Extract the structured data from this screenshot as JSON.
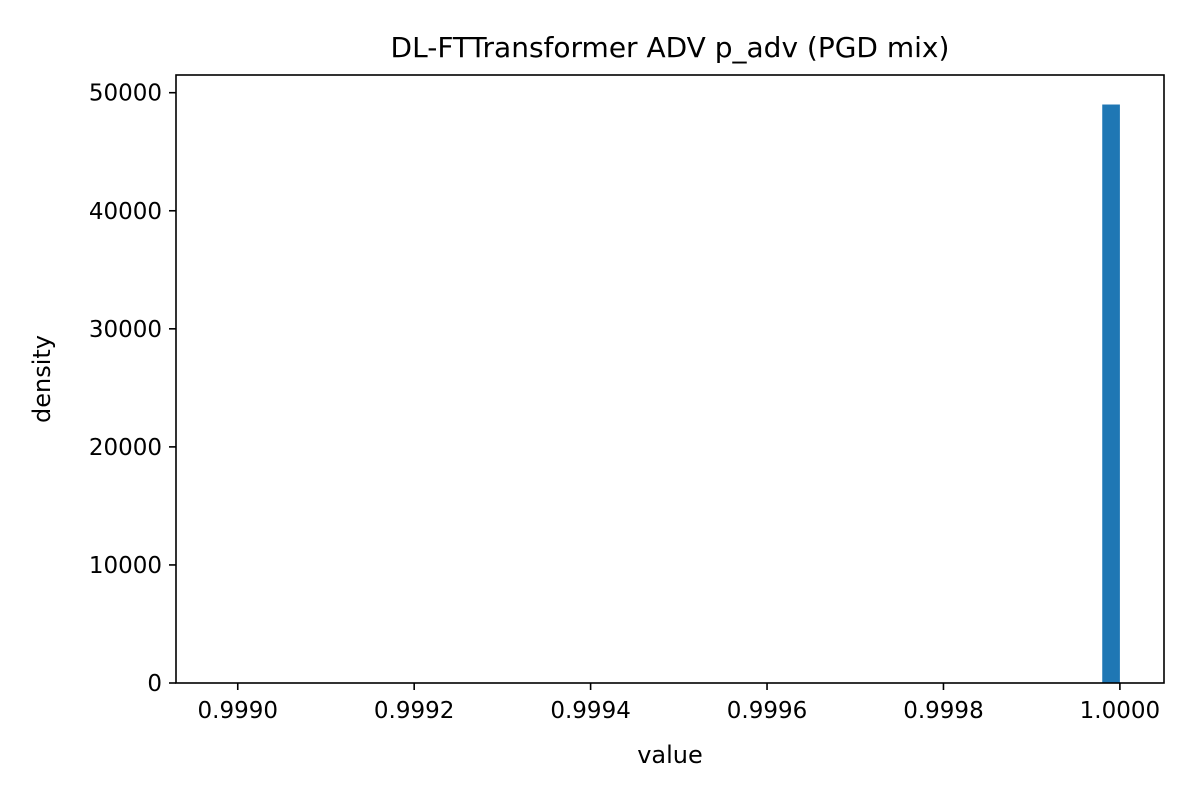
{
  "chart_data": {
    "type": "bar",
    "title": "DL-FTTransformer ADV p_adv (PGD mix)",
    "xlabel": "value",
    "ylabel": "density",
    "xlim": [
      0.99893,
      1.00005
    ],
    "ylim": [
      0,
      51500
    ],
    "xticks": [
      0.999,
      0.9992,
      0.9994,
      0.9996,
      0.9998,
      1.0
    ],
    "xtick_labels": [
      "0.9990",
      "0.9992",
      "0.9994",
      "0.9996",
      "0.9998",
      "1.0000"
    ],
    "yticks": [
      0,
      10000,
      20000,
      30000,
      40000,
      50000
    ],
    "ytick_labels": [
      "0",
      "10000",
      "20000",
      "30000",
      "40000",
      "50000"
    ],
    "bins": [
      {
        "x_start": 0.99998,
        "x_end": 1.0,
        "value": 49000
      }
    ],
    "bar_color": "#1f77b4",
    "grid": false,
    "legend": "none"
  }
}
